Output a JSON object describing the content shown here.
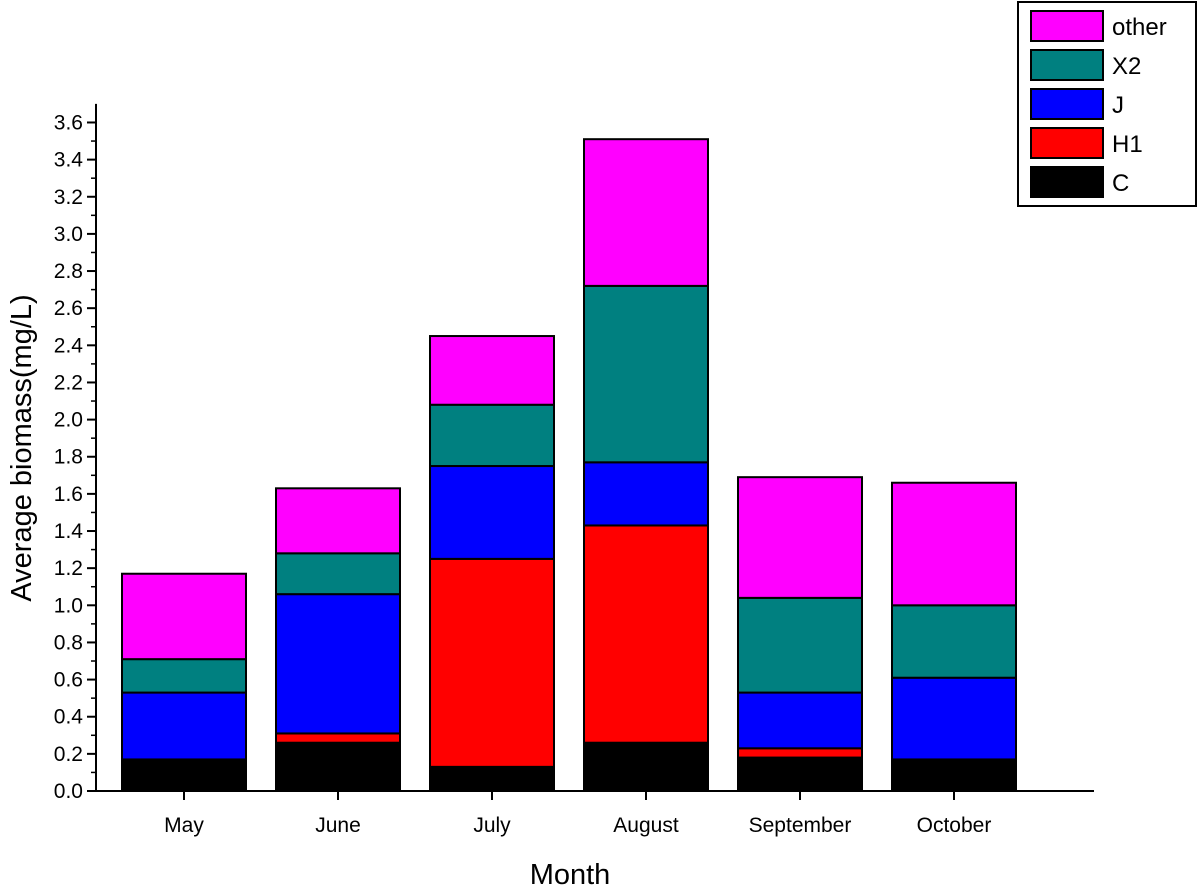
{
  "chart_data": {
    "type": "bar",
    "stacked": true,
    "title": "",
    "xlabel": "Month",
    "ylabel": "Average biomass(mg/L)",
    "ylim": [
      0,
      3.7
    ],
    "yticks": [
      "0.0",
      "0.2",
      "0.4",
      "0.6",
      "0.8",
      "1.0",
      "1.2",
      "1.4",
      "1.6",
      "1.8",
      "2.0",
      "2.2",
      "2.4",
      "2.6",
      "2.8",
      "3.0",
      "3.2",
      "3.4",
      "3.6"
    ],
    "categories": [
      "May",
      "June",
      "July",
      "August",
      "September",
      "October"
    ],
    "series": [
      {
        "name": "C",
        "color": "#000000",
        "values": [
          0.17,
          0.26,
          0.13,
          0.26,
          0.18,
          0.17
        ]
      },
      {
        "name": "H1",
        "color": "#ff0000",
        "values": [
          0.0,
          0.05,
          1.12,
          1.17,
          0.05,
          0.0
        ]
      },
      {
        "name": "J",
        "color": "#0000ff",
        "values": [
          0.36,
          0.75,
          0.5,
          0.34,
          0.3,
          0.44
        ]
      },
      {
        "name": "X2",
        "color": "#008080",
        "values": [
          0.18,
          0.22,
          0.33,
          0.95,
          0.51,
          0.39
        ]
      },
      {
        "name": "other",
        "color": "#ff00ff",
        "values": [
          0.46,
          0.35,
          0.37,
          0.79,
          0.65,
          0.66
        ]
      }
    ],
    "grid": false,
    "legend_position": "top-right"
  }
}
